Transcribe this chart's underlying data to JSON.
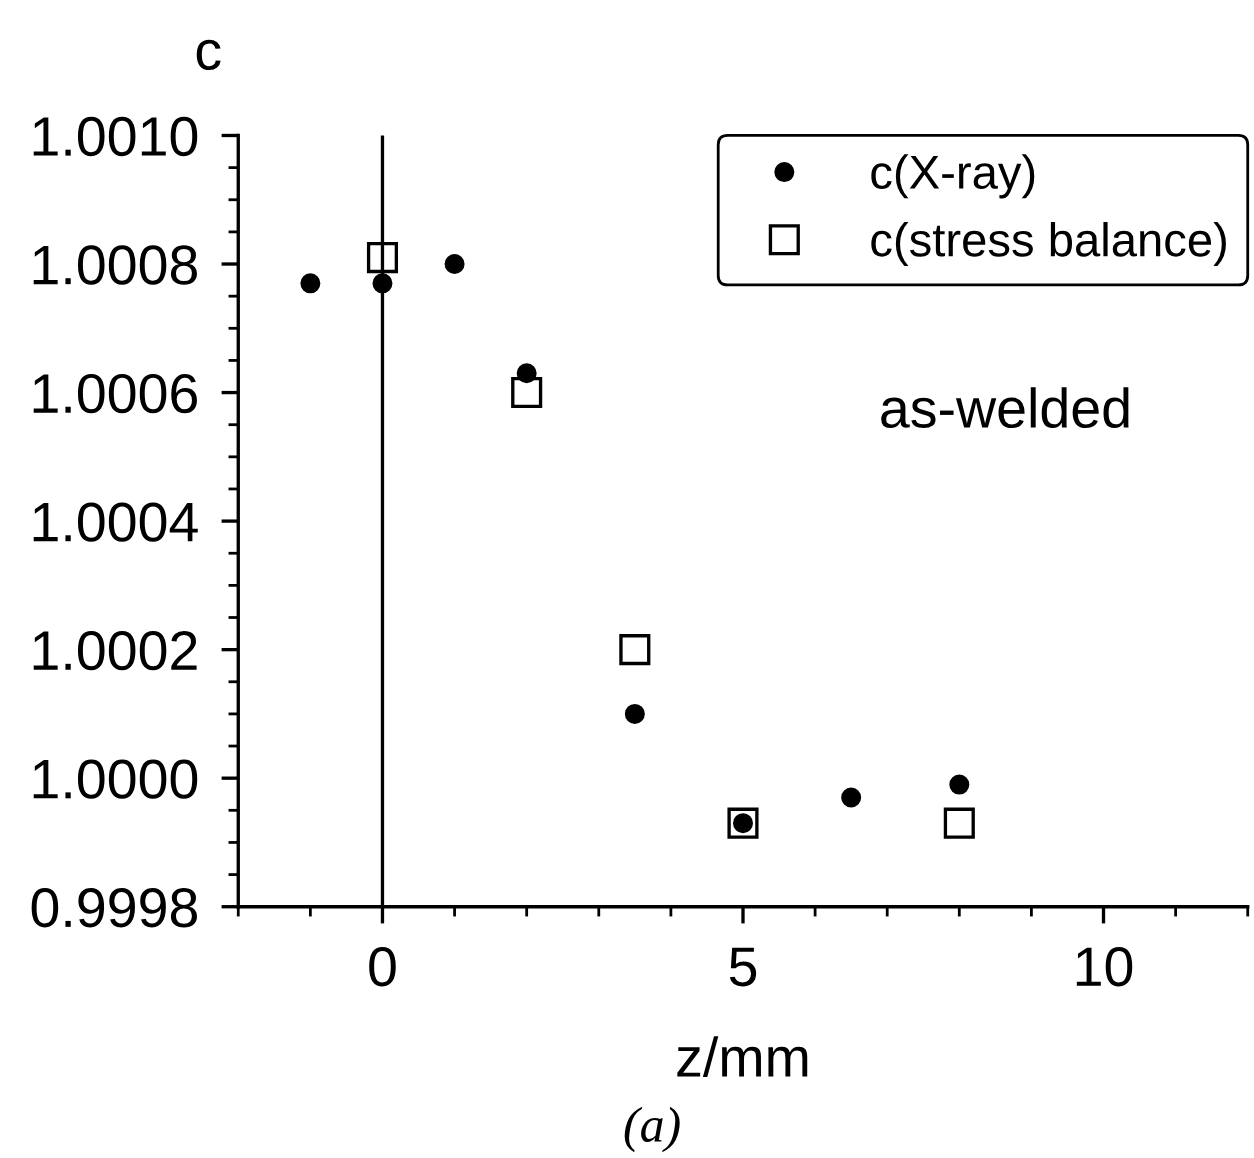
{
  "chart_data": {
    "type": "scatter",
    "xlabel": "z/mm",
    "ylabel": "c",
    "xlim": [
      -2,
      12
    ],
    "xticks": [
      0,
      5,
      10
    ],
    "ylim": [
      0.9998,
      1.001
    ],
    "yticks": [
      {
        "value": 0.9998,
        "label": "0.9998"
      },
      {
        "value": 1.0,
        "label": "1.0000"
      },
      {
        "value": 1.0002,
        "label": "1.0002"
      },
      {
        "value": 1.0004,
        "label": "1.0004"
      },
      {
        "value": 1.0006,
        "label": "1.0006"
      },
      {
        "value": 1.0008,
        "label": "1.0008"
      },
      {
        "value": 1.001,
        "label": "1.0010"
      }
    ],
    "series": [
      {
        "name": "c(X-ray)",
        "color": "#000000",
        "marker": "circle",
        "x": [
          -1,
          0,
          1,
          2,
          3.5,
          5,
          6.5,
          8
        ],
        "values": [
          1.00077,
          1.00077,
          1.0008,
          1.00063,
          1.0001,
          0.99993,
          0.99997,
          0.99999
        ]
      },
      {
        "name": "c(stress balance)",
        "color": "#000000",
        "marker": "square",
        "x": [
          0,
          2,
          3.5,
          5,
          8
        ],
        "values": [
          1.00081,
          1.0006,
          1.0002,
          0.99993,
          0.99993
        ]
      }
    ],
    "ref_lines": [
      {
        "axis": "x",
        "value": 0,
        "color": "#000000"
      }
    ],
    "annotations": [
      "as-welded",
      "(a)"
    ],
    "legend": "top right",
    "grid": false
  }
}
